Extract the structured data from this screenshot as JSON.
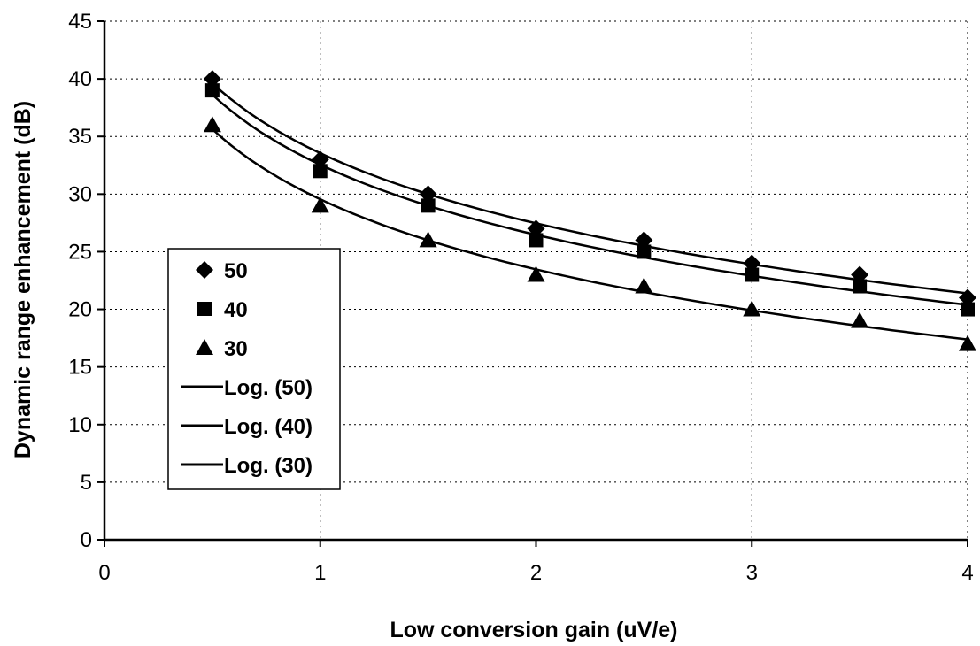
{
  "chart_data": {
    "type": "scatter",
    "title": "",
    "xlabel": "Low conversion gain (uV/e)",
    "ylabel": "Dynamic range enhancement (dB)",
    "xlim": [
      0,
      4
    ],
    "ylim": [
      0,
      45
    ],
    "xticks": [
      "0",
      "1",
      "2",
      "3",
      "4"
    ],
    "yticks": [
      "0",
      "5",
      "10",
      "15",
      "20",
      "25",
      "30",
      "35",
      "40",
      "45"
    ],
    "grid": "dotted",
    "legend_position": "left",
    "x": [
      0.5,
      1,
      1.5,
      2,
      2.5,
      3,
      3.5,
      4
    ],
    "series": [
      {
        "name": "50",
        "marker": "diamond",
        "y": [
          40,
          33,
          30,
          27,
          26,
          24,
          23,
          21
        ]
      },
      {
        "name": "40",
        "marker": "square",
        "y": [
          39,
          32,
          29,
          26,
          25,
          23,
          22,
          20
        ]
      },
      {
        "name": "30",
        "marker": "triangle",
        "y": [
          36,
          29,
          26,
          23,
          22,
          20,
          19,
          17
        ]
      }
    ],
    "trendlines": [
      {
        "name": "Log. (50)",
        "type": "log",
        "of": "50"
      },
      {
        "name": "Log. (40)",
        "type": "log",
        "of": "40"
      },
      {
        "name": "Log. (30)",
        "type": "log",
        "of": "30"
      }
    ],
    "colors": {
      "marker": "#000000",
      "line": "#000000",
      "grid": "#000000"
    }
  }
}
